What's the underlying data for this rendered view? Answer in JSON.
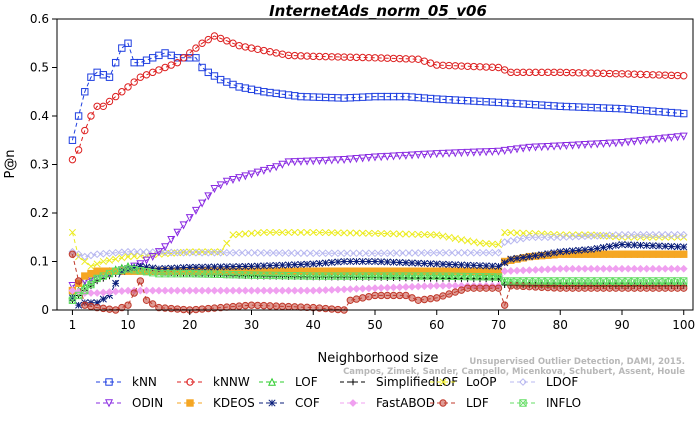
{
  "chart_data": {
    "type": "line",
    "title": "InternetAds_norm_05_v06",
    "xlabel": "Neighborhood size",
    "ylabel": "P@n",
    "xlim": [
      1,
      100
    ],
    "ylim": [
      0,
      0.6
    ],
    "x_ticks": [
      1,
      10,
      20,
      30,
      40,
      50,
      60,
      70,
      80,
      90,
      100
    ],
    "y_ticks": [
      0,
      0.1,
      0.2,
      0.3,
      0.4,
      0.5,
      0.6
    ],
    "grid": false,
    "legend_position": "bottom",
    "watermark": "Unsupervised Outlier Detection, DAMI, 2015. Campos, Zimek, Sander, Campello, Micenkova, Schubert, Assent, Houle",
    "series": [
      {
        "name": "kNN",
        "color": "#1f3fe0",
        "marker": "square",
        "dash": "4,3",
        "points": [
          [
            1,
            0.35
          ],
          [
            2,
            0.4
          ],
          [
            3,
            0.45
          ],
          [
            4,
            0.48
          ],
          [
            5,
            0.49
          ],
          [
            7,
            0.48
          ],
          [
            9,
            0.54
          ],
          [
            10,
            0.55
          ],
          [
            11,
            0.51
          ],
          [
            12,
            0.51
          ],
          [
            14,
            0.52
          ],
          [
            16,
            0.53
          ],
          [
            18,
            0.52
          ],
          [
            20,
            0.52
          ],
          [
            21,
            0.52
          ],
          [
            22,
            0.5
          ],
          [
            23,
            0.49
          ],
          [
            25,
            0.475
          ],
          [
            28,
            0.46
          ],
          [
            32,
            0.45
          ],
          [
            38,
            0.44
          ],
          [
            45,
            0.437
          ],
          [
            50,
            0.44
          ],
          [
            55,
            0.44
          ],
          [
            60,
            0.435
          ],
          [
            70,
            0.428
          ],
          [
            80,
            0.42
          ],
          [
            90,
            0.415
          ],
          [
            95,
            0.41
          ],
          [
            100,
            0.405
          ]
        ]
      },
      {
        "name": "kNNW",
        "color": "#dd2020",
        "marker": "circle",
        "dash": "4,3",
        "points": [
          [
            1,
            0.31
          ],
          [
            2,
            0.33
          ],
          [
            3,
            0.37
          ],
          [
            4,
            0.4
          ],
          [
            5,
            0.42
          ],
          [
            6,
            0.42
          ],
          [
            8,
            0.44
          ],
          [
            10,
            0.46
          ],
          [
            12,
            0.48
          ],
          [
            14,
            0.49
          ],
          [
            16,
            0.5
          ],
          [
            18,
            0.51
          ],
          [
            20,
            0.53
          ],
          [
            22,
            0.55
          ],
          [
            24,
            0.565
          ],
          [
            26,
            0.555
          ],
          [
            28,
            0.545
          ],
          [
            32,
            0.535
          ],
          [
            36,
            0.525
          ],
          [
            40,
            0.523
          ],
          [
            50,
            0.52
          ],
          [
            57,
            0.517
          ],
          [
            60,
            0.505
          ],
          [
            70,
            0.5
          ],
          [
            72,
            0.49
          ],
          [
            80,
            0.49
          ],
          [
            90,
            0.487
          ],
          [
            100,
            0.483
          ]
        ]
      },
      {
        "name": "LOF",
        "color": "#2ecc2e",
        "marker": "triangle-up",
        "dash": "4,3",
        "points": [
          [
            1,
            0.03
          ],
          [
            3,
            0.05
          ],
          [
            5,
            0.07
          ],
          [
            7,
            0.08
          ],
          [
            10,
            0.09
          ],
          [
            15,
            0.08
          ],
          [
            20,
            0.08
          ],
          [
            30,
            0.078
          ],
          [
            40,
            0.075
          ],
          [
            50,
            0.075
          ],
          [
            60,
            0.073
          ],
          [
            70,
            0.072
          ],
          [
            71,
            0.058
          ],
          [
            75,
            0.055
          ],
          [
            80,
            0.055
          ],
          [
            90,
            0.055
          ],
          [
            100,
            0.056
          ]
        ]
      },
      {
        "name": "SimplifiedLOF",
        "color": "#000000",
        "marker": "plus",
        "dash": "4,3",
        "points": [
          [
            1,
            0.02
          ],
          [
            3,
            0.04
          ],
          [
            5,
            0.06
          ],
          [
            7,
            0.07
          ],
          [
            9,
            0.08
          ],
          [
            12,
            0.08
          ],
          [
            20,
            0.075
          ],
          [
            30,
            0.07
          ],
          [
            40,
            0.068
          ],
          [
            50,
            0.067
          ],
          [
            60,
            0.065
          ],
          [
            70,
            0.064
          ],
          [
            71,
            0.052
          ],
          [
            80,
            0.05
          ],
          [
            90,
            0.05
          ],
          [
            100,
            0.05
          ]
        ]
      },
      {
        "name": "LoOP",
        "color": "#ecec20",
        "marker": "x",
        "dash": "4,3",
        "points": [
          [
            1,
            0.16
          ],
          [
            2,
            0.11
          ],
          [
            4,
            0.09
          ],
          [
            6,
            0.1
          ],
          [
            10,
            0.11
          ],
          [
            15,
            0.115
          ],
          [
            20,
            0.12
          ],
          [
            25,
            0.12
          ],
          [
            27,
            0.155
          ],
          [
            32,
            0.16
          ],
          [
            40,
            0.16
          ],
          [
            50,
            0.158
          ],
          [
            60,
            0.155
          ],
          [
            64,
            0.145
          ],
          [
            67,
            0.138
          ],
          [
            70,
            0.135
          ],
          [
            71,
            0.16
          ],
          [
            75,
            0.158
          ],
          [
            80,
            0.155
          ],
          [
            85,
            0.155
          ],
          [
            90,
            0.15
          ],
          [
            100,
            0.15
          ]
        ]
      },
      {
        "name": "LDOF",
        "color": "#b8b8f0",
        "marker": "diamond",
        "dash": "4,3",
        "points": [
          [
            1,
            0.12
          ],
          [
            3,
            0.11
          ],
          [
            5,
            0.115
          ],
          [
            10,
            0.12
          ],
          [
            20,
            0.118
          ],
          [
            30,
            0.118
          ],
          [
            40,
            0.117
          ],
          [
            50,
            0.117
          ],
          [
            60,
            0.118
          ],
          [
            70,
            0.118
          ],
          [
            71,
            0.14
          ],
          [
            75,
            0.15
          ],
          [
            80,
            0.15
          ],
          [
            90,
            0.155
          ],
          [
            100,
            0.155
          ]
        ]
      },
      {
        "name": "ODIN",
        "color": "#8a2be2",
        "marker": "triangle-down",
        "dash": "4,3",
        "points": [
          [
            1,
            0.05
          ],
          [
            3,
            0.06
          ],
          [
            5,
            0.07
          ],
          [
            8,
            0.08
          ],
          [
            10,
            0.085
          ],
          [
            12,
            0.095
          ],
          [
            14,
            0.11
          ],
          [
            16,
            0.13
          ],
          [
            18,
            0.16
          ],
          [
            20,
            0.19
          ],
          [
            22,
            0.22
          ],
          [
            24,
            0.25
          ],
          [
            26,
            0.265
          ],
          [
            30,
            0.28
          ],
          [
            34,
            0.295
          ],
          [
            36,
            0.305
          ],
          [
            40,
            0.307
          ],
          [
            45,
            0.31
          ],
          [
            50,
            0.315
          ],
          [
            60,
            0.322
          ],
          [
            70,
            0.327
          ],
          [
            75,
            0.335
          ],
          [
            80,
            0.338
          ],
          [
            90,
            0.345
          ],
          [
            100,
            0.358
          ]
        ]
      },
      {
        "name": "KDEOS",
        "color": "#f5a623",
        "marker": "square-filled",
        "dash": "4,3",
        "points": [
          [
            1,
            0.04
          ],
          [
            3,
            0.07
          ],
          [
            5,
            0.08
          ],
          [
            10,
            0.08
          ],
          [
            20,
            0.08
          ],
          [
            30,
            0.08
          ],
          [
            40,
            0.08
          ],
          [
            50,
            0.08
          ],
          [
            60,
            0.08
          ],
          [
            70,
            0.08
          ],
          [
            71,
            0.1
          ],
          [
            75,
            0.11
          ],
          [
            80,
            0.115
          ],
          [
            90,
            0.115
          ],
          [
            100,
            0.115
          ]
        ]
      },
      {
        "name": "COF",
        "color": "#0a1e7a",
        "marker": "star",
        "dash": "4,3",
        "points": [
          [
            1,
            0.025
          ],
          [
            2,
            0.01
          ],
          [
            3,
            0.015
          ],
          [
            5,
            0.015
          ],
          [
            7,
            0.03
          ],
          [
            9,
            0.08
          ],
          [
            12,
            0.09
          ],
          [
            15,
            0.085
          ],
          [
            20,
            0.088
          ],
          [
            30,
            0.09
          ],
          [
            40,
            0.095
          ],
          [
            45,
            0.1
          ],
          [
            50,
            0.1
          ],
          [
            60,
            0.095
          ],
          [
            70,
            0.09
          ],
          [
            72,
            0.105
          ],
          [
            75,
            0.11
          ],
          [
            80,
            0.12
          ],
          [
            85,
            0.125
          ],
          [
            90,
            0.135
          ],
          [
            100,
            0.13
          ]
        ]
      },
      {
        "name": "FastABOD",
        "color": "#f0a0f0",
        "marker": "diamond-filled",
        "dash": "4,3",
        "points": [
          [
            1,
            0.04
          ],
          [
            3,
            0.035
          ],
          [
            5,
            0.035
          ],
          [
            10,
            0.04
          ],
          [
            20,
            0.04
          ],
          [
            30,
            0.04
          ],
          [
            40,
            0.04
          ],
          [
            50,
            0.045
          ],
          [
            60,
            0.05
          ],
          [
            70,
            0.05
          ],
          [
            71,
            0.08
          ],
          [
            80,
            0.085
          ],
          [
            90,
            0.085
          ],
          [
            100,
            0.085
          ]
        ]
      },
      {
        "name": "LDF",
        "color": "#c0392b",
        "marker": "circle-filled",
        "dash": "4,3",
        "points": [
          [
            1,
            0.115
          ],
          [
            2,
            0.06
          ],
          [
            3,
            0.01
          ],
          [
            5,
            0.005
          ],
          [
            8,
            0.0
          ],
          [
            10,
            0.01
          ],
          [
            12,
            0.06
          ],
          [
            13,
            0.02
          ],
          [
            15,
            0.005
          ],
          [
            20,
            0.0
          ],
          [
            30,
            0.01
          ],
          [
            40,
            0.005
          ],
          [
            45,
            0.0
          ],
          [
            46,
            0.02
          ],
          [
            50,
            0.03
          ],
          [
            55,
            0.03
          ],
          [
            57,
            0.02
          ],
          [
            60,
            0.025
          ],
          [
            65,
            0.045
          ],
          [
            70,
            0.045
          ],
          [
            71,
            0.01
          ],
          [
            72,
            0.05
          ],
          [
            80,
            0.045
          ],
          [
            90,
            0.045
          ],
          [
            100,
            0.045
          ]
        ]
      },
      {
        "name": "INFLO",
        "color": "#66dd66",
        "marker": "square-x",
        "dash": "4,3",
        "points": [
          [
            1,
            0.02
          ],
          [
            3,
            0.04
          ],
          [
            5,
            0.065
          ],
          [
            8,
            0.08
          ],
          [
            10,
            0.085
          ],
          [
            15,
            0.075
          ],
          [
            20,
            0.075
          ],
          [
            30,
            0.072
          ],
          [
            40,
            0.07
          ],
          [
            50,
            0.07
          ],
          [
            60,
            0.07
          ],
          [
            70,
            0.068
          ],
          [
            71,
            0.06
          ],
          [
            80,
            0.06
          ],
          [
            90,
            0.06
          ],
          [
            100,
            0.06
          ]
        ]
      }
    ]
  }
}
